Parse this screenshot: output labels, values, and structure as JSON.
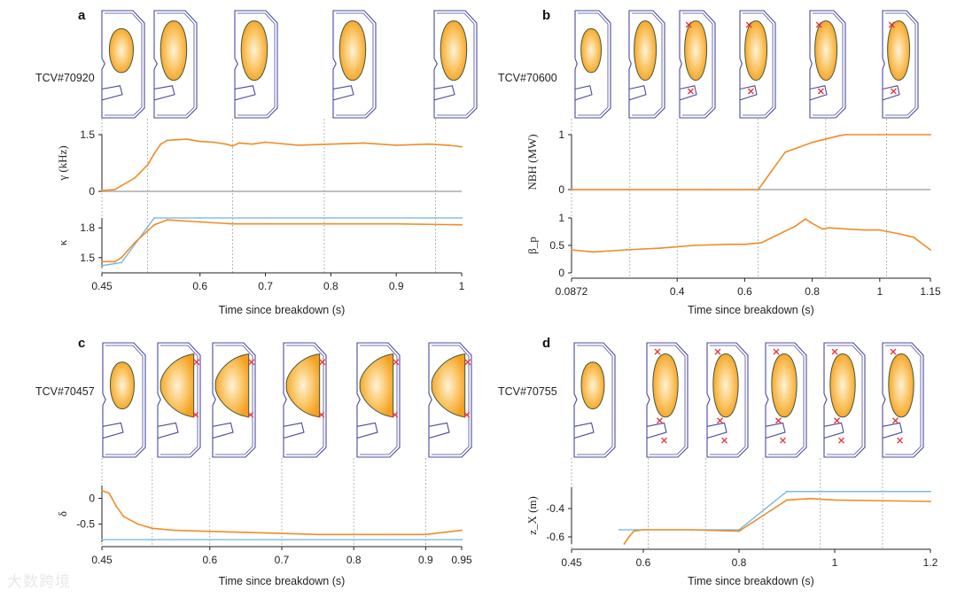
{
  "figure": {
    "watermark": "大数跨境",
    "xlabel": "Time since breakdown (s)",
    "colors": {
      "measured": "#f08c28",
      "target": "#6fb3dc",
      "vessel": "#4a4a9e",
      "plasma_outer": "#f5a020",
      "plasma_inner": "#fdf3d8",
      "xpoint": "#e8323c"
    }
  },
  "chart_data": [
    {
      "panel": "a",
      "shot": "TCV#70920",
      "type": "line",
      "xlabel": "Time since breakdown (s)",
      "xlim": [
        0.45,
        1.0
      ],
      "xticks": [
        "0.45",
        "0.6",
        "0.7",
        "0.8",
        "0.9",
        "1"
      ],
      "xtick_values": [
        0.45,
        0.6,
        0.7,
        0.8,
        0.9,
        1.0
      ],
      "snapshot_times": [
        0.45,
        0.52,
        0.65,
        0.79,
        0.96
      ],
      "subplots": [
        {
          "ylabel": "γ (kHz)",
          "ylim": [
            0,
            1.5
          ],
          "yticks": [
            "0",
            "1.5"
          ],
          "ytick_values": [
            0,
            1.5
          ],
          "series": [
            {
              "x": [
                0.45,
                0.47,
                0.48,
                0.5,
                0.52,
                0.53,
                0.54,
                0.55,
                0.58,
                0.6,
                0.62,
                0.64,
                0.65,
                0.66,
                0.68,
                0.7,
                0.75,
                0.8,
                0.85,
                0.9,
                0.95,
                0.98,
                1.0
              ],
              "y": [
                0.02,
                0.05,
                0.15,
                0.35,
                0.7,
                1.0,
                1.25,
                1.35,
                1.38,
                1.32,
                1.3,
                1.25,
                1.2,
                1.28,
                1.25,
                1.3,
                1.22,
                1.25,
                1.28,
                1.22,
                1.25,
                1.22,
                1.18
              ]
            }
          ]
        },
        {
          "ylabel": "κ",
          "ylim": [
            1.4,
            1.9
          ],
          "yticks": [
            "1.5",
            "1.8"
          ],
          "ytick_values": [
            1.5,
            1.8
          ],
          "series": [
            {
              "x": [
                0.45,
                0.47,
                0.48,
                0.53,
                0.6,
                1.0
              ],
              "y": [
                1.42,
                1.44,
                1.45,
                1.9,
                1.9,
                1.9
              ]
            },
            {
              "x": [
                0.45,
                0.47,
                0.48,
                0.5,
                0.53,
                0.55,
                0.6,
                0.65,
                0.7,
                0.8,
                0.9,
                1.0
              ],
              "y": [
                1.46,
                1.46,
                1.5,
                1.65,
                1.83,
                1.88,
                1.86,
                1.84,
                1.84,
                1.84,
                1.84,
                1.83
              ]
            }
          ]
        }
      ]
    },
    {
      "panel": "b",
      "shot": "TCV#70600",
      "type": "line",
      "xlabel": "Time since breakdown (s)",
      "xlim": [
        0.0872,
        1.15
      ],
      "xticks": [
        "0.0872",
        "0.4",
        "0.6",
        "0.8",
        "1",
        "1.15"
      ],
      "xtick_values": [
        0.0872,
        0.4,
        0.6,
        0.8,
        1.0,
        1.15
      ],
      "snapshot_times": [
        0.0872,
        0.26,
        0.4,
        0.64,
        0.84,
        1.02
      ],
      "subplots": [
        {
          "ylabel": "NBH (MW)",
          "ylim": [
            0,
            1
          ],
          "yticks": [
            "0",
            "1"
          ],
          "ytick_values": [
            0,
            1
          ],
          "series": [
            {
              "x": [
                0.0872,
                0.5,
                0.62,
                0.64,
                0.72,
                0.8,
                0.88,
                0.9,
                1.0,
                1.15
              ],
              "y": [
                0,
                0,
                0,
                0,
                0.68,
                0.86,
                0.98,
                1.0,
                1.0,
                1.0
              ]
            }
          ]
        },
        {
          "ylabel": "β_p",
          "ylim": [
            0,
            1
          ],
          "yticks": [
            "0",
            "0.5",
            "1"
          ],
          "ytick_values": [
            0,
            0.5,
            1
          ],
          "series": [
            {
              "x": [
                0.0872,
                0.15,
                0.25,
                0.35,
                0.45,
                0.55,
                0.6,
                0.65,
                0.7,
                0.75,
                0.78,
                0.8,
                0.83,
                0.85,
                0.9,
                0.95,
                1.0,
                1.05,
                1.1,
                1.15
              ],
              "y": [
                0.42,
                0.38,
                0.42,
                0.45,
                0.5,
                0.52,
                0.52,
                0.55,
                0.7,
                0.85,
                0.98,
                0.9,
                0.8,
                0.82,
                0.8,
                0.78,
                0.78,
                0.72,
                0.65,
                0.42
              ]
            }
          ]
        }
      ]
    },
    {
      "panel": "c",
      "shot": "TCV#70457",
      "type": "line",
      "xlabel": "Time since breakdown (s)",
      "xlim": [
        0.45,
        0.95
      ],
      "xticks": [
        "0.45",
        "0.6",
        "0.7",
        "0.8",
        "0.9",
        "0.95"
      ],
      "xtick_values": [
        0.45,
        0.6,
        0.7,
        0.8,
        0.9,
        0.95
      ],
      "snapshot_times": [
        0.45,
        0.52,
        0.6,
        0.7,
        0.8,
        0.9
      ],
      "subplots": [
        {
          "ylabel": "δ",
          "ylim": [
            -0.85,
            0.25
          ],
          "yticks": [
            "0",
            "-0.5"
          ],
          "ytick_values": [
            0,
            -0.5
          ],
          "series": [
            {
              "x": [
                0.45,
                0.95
              ],
              "y": [
                -0.8,
                -0.8
              ]
            },
            {
              "x": [
                0.45,
                0.46,
                0.47,
                0.48,
                0.5,
                0.52,
                0.55,
                0.6,
                0.65,
                0.7,
                0.75,
                0.8,
                0.85,
                0.9,
                0.95
              ],
              "y": [
                0.15,
                0.1,
                -0.15,
                -0.35,
                -0.5,
                -0.58,
                -0.62,
                -0.64,
                -0.66,
                -0.68,
                -0.7,
                -0.7,
                -0.7,
                -0.7,
                -0.62
              ]
            }
          ]
        }
      ]
    },
    {
      "panel": "d",
      "shot": "TCV#70755",
      "type": "line",
      "xlabel": "Time since breakdown (s)",
      "xlim": [
        0.45,
        1.2
      ],
      "xticks": [
        "0.45",
        "0.6",
        "0.8",
        "1",
        "1.2"
      ],
      "xtick_values": [
        0.45,
        0.6,
        0.8,
        1.0,
        1.2
      ],
      "snapshot_times": [
        0.45,
        0.61,
        0.73,
        0.85,
        0.97,
        1.1
      ],
      "subplots": [
        {
          "ylabel": "z_X (m)",
          "ylim": [
            -0.65,
            -0.25
          ],
          "yticks": [
            "-0.4",
            "-0.6"
          ],
          "ytick_values": [
            -0.4,
            -0.6
          ],
          "series": [
            {
              "x": [
                0.55,
                0.8,
                0.9,
                1.2
              ],
              "y": [
                -0.55,
                -0.55,
                -0.28,
                -0.28
              ]
            },
            {
              "x": [
                0.56,
                0.57,
                0.58,
                0.6,
                0.7,
                0.8,
                0.85,
                0.9,
                0.95,
                1.0,
                1.2
              ],
              "y": [
                -0.65,
                -0.6,
                -0.56,
                -0.55,
                -0.55,
                -0.56,
                -0.45,
                -0.34,
                -0.33,
                -0.34,
                -0.35
              ]
            }
          ]
        }
      ]
    }
  ]
}
